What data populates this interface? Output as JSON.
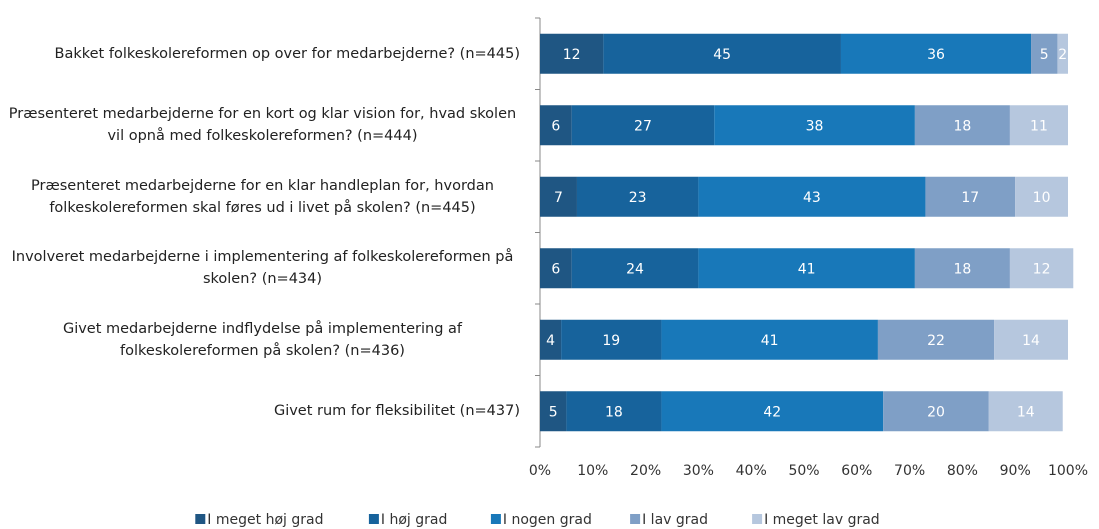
{
  "chart_data": {
    "type": "stacked_barh",
    "categories": [
      "Bakket folkeskolereformen op over for medarbejderne? (n=445)",
      "Præsenteret medarbejderne for en kort og klar vision for, hvad skolen vil opnå med folkeskolereformen? (n=444)",
      "Præsenteret medarbejderne for en klar handleplan for, hvordan folkeskolereformen skal føres ud i livet på skolen? (n=445)",
      "Involveret medarbejderne i implementering af folkeskolereformen på skolen? (n=434)",
      "Givet medarbejderne indflydelse på implementering af folkeskolereformen på skolen? (n=436)",
      "Givet rum for fleksibilitet (n=437)"
    ],
    "series": [
      {
        "name": "I meget høj grad",
        "color": "#1f5683",
        "values": [
          12,
          6,
          7,
          6,
          4,
          5
        ]
      },
      {
        "name": "I høj grad",
        "color": "#17639c",
        "values": [
          45,
          27,
          23,
          24,
          19,
          18
        ]
      },
      {
        "name": "I nogen grad",
        "color": "#1878b9",
        "values": [
          36,
          38,
          43,
          41,
          41,
          42
        ]
      },
      {
        "name": "I lav grad",
        "color": "#7f9fc6",
        "values": [
          5,
          18,
          17,
          18,
          22,
          20
        ]
      },
      {
        "name": "I meget lav grad",
        "color": "#b6c7de",
        "values": [
          2,
          11,
          10,
          12,
          14,
          14
        ]
      }
    ],
    "xlim": [
      0,
      100
    ],
    "xticks": [
      {
        "value": 0,
        "label": "0%"
      },
      {
        "value": 10,
        "label": "10%"
      },
      {
        "value": 20,
        "label": "20%"
      },
      {
        "value": 30,
        "label": "30%"
      },
      {
        "value": 40,
        "label": "40%"
      },
      {
        "value": 50,
        "label": "50%"
      },
      {
        "value": 60,
        "label": "60%"
      },
      {
        "value": 70,
        "label": "70%"
      },
      {
        "value": 80,
        "label": "80%"
      },
      {
        "value": 90,
        "label": "90%"
      },
      {
        "value": 100,
        "label": "100%"
      }
    ],
    "legend": "bottom"
  }
}
